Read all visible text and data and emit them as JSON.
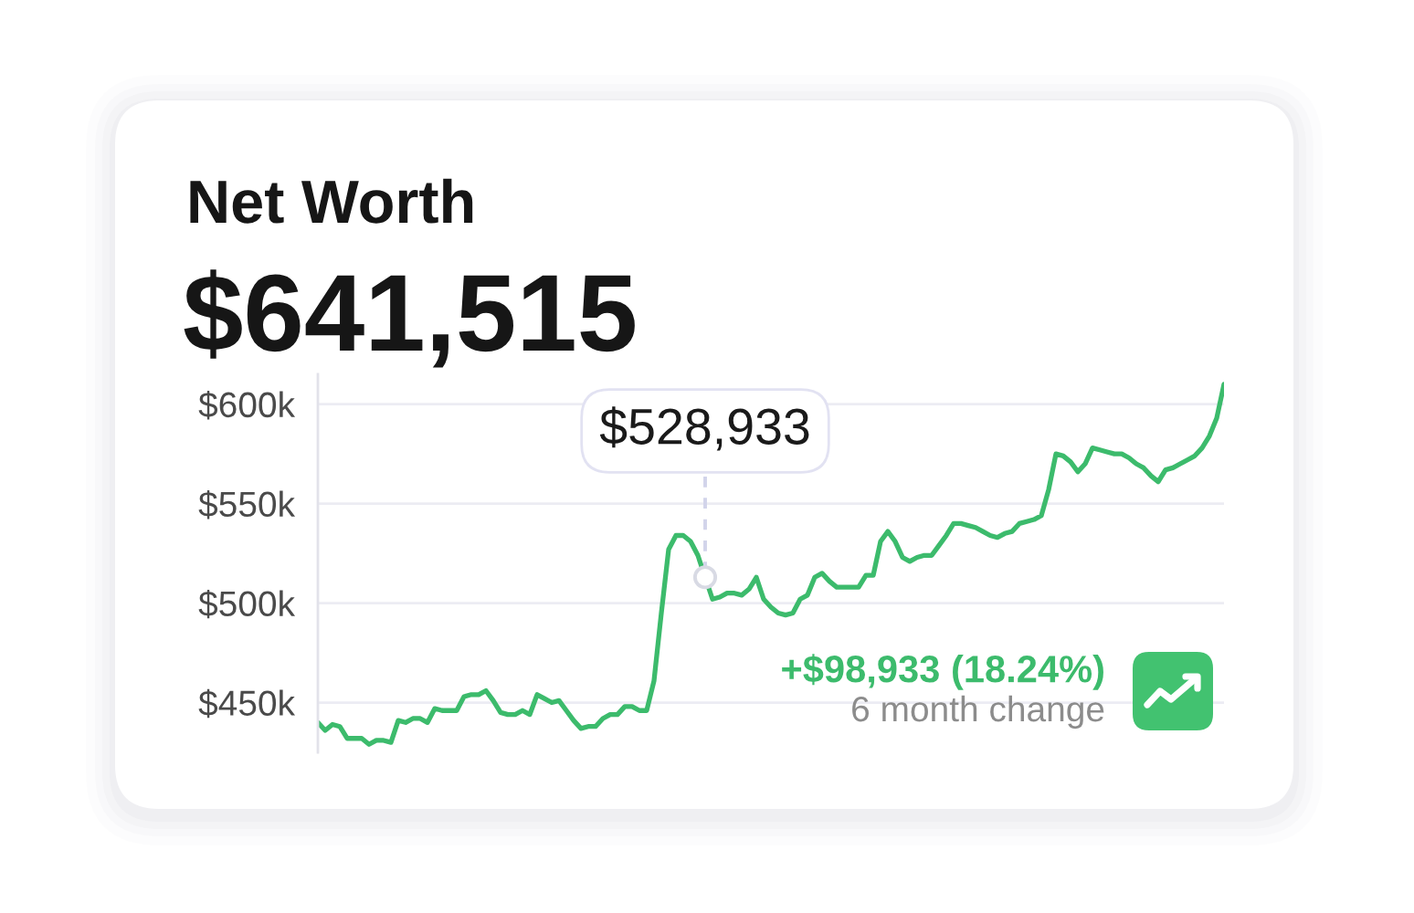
{
  "chart_data": {
    "type": "line",
    "title": "Net Worth",
    "subtitle": "$641,515",
    "categories": [
      null,
      null,
      null,
      null,
      null,
      null,
      null,
      null,
      null,
      null,
      null,
      null,
      null,
      null,
      null,
      null,
      null,
      null,
      null,
      null,
      null,
      null,
      null,
      null,
      null,
      null,
      null,
      null,
      null,
      null,
      null,
      null,
      null,
      null,
      null,
      null,
      null,
      null,
      null,
      null,
      null,
      null,
      null,
      null,
      null,
      null,
      null,
      null,
      null,
      null,
      null,
      null,
      null,
      null,
      null,
      null,
      null,
      null,
      null,
      null,
      null,
      null,
      null,
      null,
      null,
      null,
      null,
      null,
      null,
      null,
      null,
      null,
      null,
      null,
      null,
      null,
      null,
      null,
      null,
      null,
      null,
      null,
      null,
      null,
      null,
      null,
      null,
      null,
      null,
      null,
      null,
      null,
      null,
      null,
      null,
      null,
      null,
      null,
      null,
      null,
      null,
      null,
      null,
      null,
      null,
      null,
      null,
      null,
      null,
      null,
      null,
      null,
      null,
      null,
      null,
      null,
      null,
      null,
      null,
      null,
      null,
      null,
      null,
      null,
      null
    ],
    "series": [
      {
        "color": "#3cbb6c",
        "values": [
          440,
          436,
          439,
          438,
          432,
          432,
          432,
          429,
          431,
          431,
          430,
          441,
          440,
          442,
          442,
          440,
          447,
          446,
          446,
          446,
          453,
          454,
          454,
          456,
          451,
          445,
          444,
          444,
          446,
          444,
          454,
          452,
          450,
          451,
          446,
          441,
          437,
          438,
          438,
          442,
          444,
          444,
          448,
          448,
          446,
          446,
          461,
          495,
          527,
          534,
          534,
          531,
          524,
          513,
          502,
          503,
          505,
          505,
          504,
          507,
          513,
          502,
          498,
          495,
          494,
          495,
          502,
          504,
          513,
          515,
          511,
          508,
          508,
          508,
          508,
          514,
          514,
          531,
          536,
          531,
          523,
          521,
          523,
          524,
          524,
          529,
          534,
          540,
          540,
          539,
          538,
          536,
          534,
          533,
          535,
          536,
          540,
          541,
          542,
          544,
          557,
          575,
          574,
          571,
          566,
          570,
          578,
          577,
          576,
          575,
          575,
          573,
          570,
          568,
          564,
          561,
          567,
          568,
          570,
          572,
          574,
          578,
          584,
          593,
          610
        ]
      }
    ],
    "ylim": [
      425,
      615
    ],
    "yticks": [
      {
        "value": 450,
        "label": "$450k"
      },
      {
        "value": 500,
        "label": "$500k"
      },
      {
        "value": 550,
        "label": "$550k"
      },
      {
        "value": 600,
        "label": "$600k"
      }
    ],
    "tick_labels": "y",
    "grid": "y",
    "annotations": [
      "$528,933",
      "+$98,933 (18.24%)",
      "6 month change"
    ]
  }
}
